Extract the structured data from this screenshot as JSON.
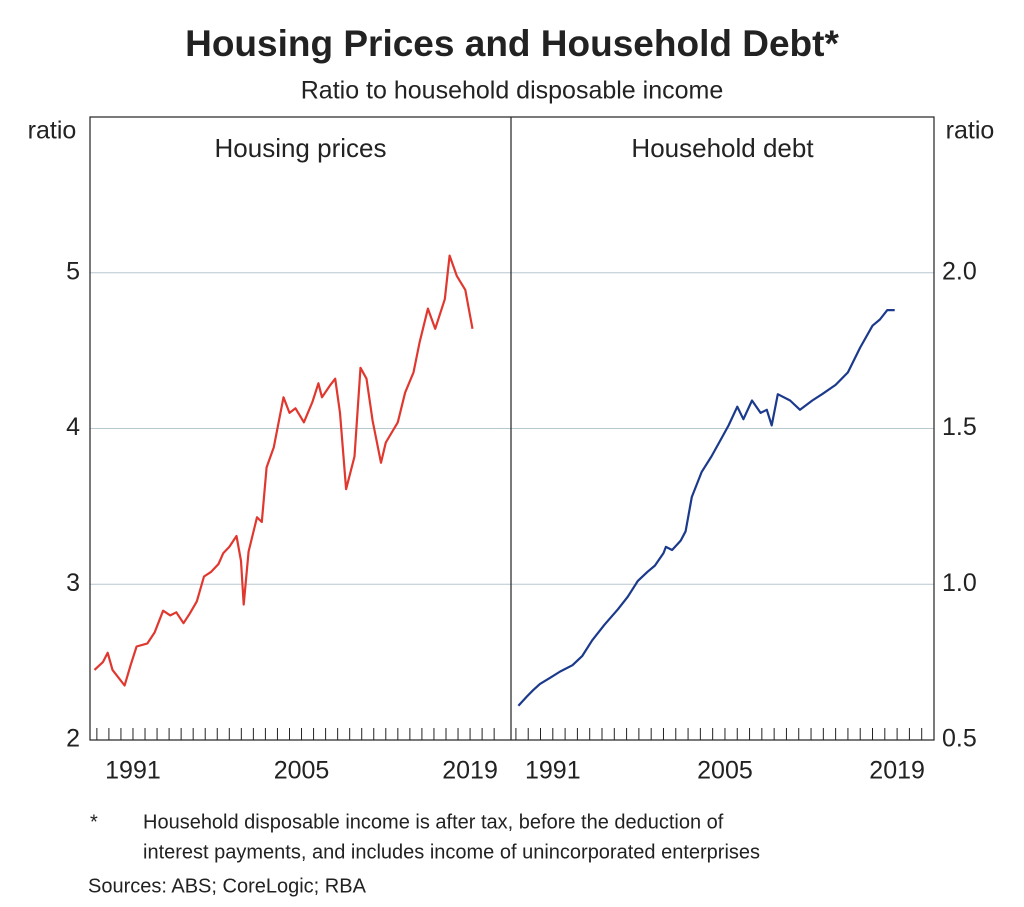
{
  "title": "Housing Prices and Household Debt*",
  "subtitle": "Ratio to household disposable income",
  "footnote": {
    "marker": "*",
    "lines": [
      "Household disposable income is after tax, before the deduction of",
      "interest payments, and includes income of unincorporated enterprises"
    ]
  },
  "sources": "Sources: ABS; CoreLogic; RBA",
  "chart_data": [
    {
      "type": "line",
      "title": "Housing prices",
      "ylabel": "ratio",
      "axis_side": "left",
      "color": "#e0382f",
      "xlim": [
        1987.43,
        2022.4
      ],
      "xticks": [
        1991,
        2005,
        2019
      ],
      "minor_xticks": [
        1988,
        1989,
        1990,
        1991,
        1992,
        1993,
        1994,
        1995,
        1996,
        1997,
        1998,
        1999,
        2000,
        2001,
        2002,
        2003,
        2004,
        2005,
        2006,
        2007,
        2008,
        2009,
        2010,
        2011,
        2012,
        2013,
        2014,
        2015,
        2016,
        2017,
        2018,
        2019,
        2020,
        2021
      ],
      "ylim": [
        2,
        6
      ],
      "yticks": [
        2,
        3,
        4,
        5
      ],
      "grid": true,
      "x": [
        1987.8,
        1988.5,
        1988.9,
        1989.3,
        1990.3,
        1990.8,
        1991.3,
        1992.2,
        1992.8,
        1993.5,
        1994.1,
        1994.6,
        1995.2,
        1995.7,
        1996.3,
        1996.9,
        1997.5,
        1998.1,
        1998.5,
        1999.0,
        1999.6,
        1999.97,
        2000.2,
        2000.6,
        2001.3,
        2001.7,
        2002.1,
        2002.7,
        2003.5,
        2004.0,
        2004.5,
        2005.2,
        2005.9,
        2006.4,
        2006.7,
        2007.4,
        2007.8,
        2008.2,
        2008.7,
        2009.4,
        2009.9,
        2010.4,
        2010.9,
        2011.6,
        2012.0,
        2013.0,
        2013.6,
        2014.3,
        2014.8,
        2015.5,
        2016.1,
        2016.9,
        2017.3,
        2017.9,
        2018.6,
        2019.2
      ],
      "values": [
        2.45,
        2.5,
        2.56,
        2.45,
        2.35,
        2.48,
        2.6,
        2.62,
        2.69,
        2.83,
        2.8,
        2.82,
        2.75,
        2.81,
        2.89,
        3.05,
        3.08,
        3.13,
        3.2,
        3.24,
        3.31,
        3.15,
        2.87,
        3.21,
        3.43,
        3.4,
        3.75,
        3.88,
        4.2,
        4.1,
        4.13,
        4.04,
        4.17,
        4.29,
        4.2,
        4.28,
        4.32,
        4.1,
        3.61,
        3.82,
        4.39,
        4.32,
        4.05,
        3.78,
        3.91,
        4.04,
        4.23,
        4.36,
        4.55,
        4.77,
        4.64,
        4.83,
        5.11,
        4.98,
        4.89,
        4.64
      ]
    },
    {
      "type": "line",
      "title": "Household debt",
      "ylabel": "ratio",
      "axis_side": "right",
      "color": "#1b3a8c",
      "xlim": [
        1987.6,
        2022.0
      ],
      "xticks": [
        1991,
        2005,
        2019
      ],
      "minor_xticks": [
        1988,
        1989,
        1990,
        1991,
        1992,
        1993,
        1994,
        1995,
        1996,
        1997,
        1998,
        1999,
        2000,
        2001,
        2002,
        2003,
        2004,
        2005,
        2006,
        2007,
        2008,
        2009,
        2010,
        2011,
        2012,
        2013,
        2014,
        2015,
        2016,
        2017,
        2018,
        2019,
        2020,
        2021
      ],
      "ylim": [
        0.5,
        2.5
      ],
      "yticks": [
        0.5,
        {
          "value": 1,
          "label": "1.0"
        },
        1.5,
        {
          "value": 2,
          "label": "2.0"
        }
      ],
      "grid": true,
      "x": [
        1988.2,
        1988.9,
        1989.4,
        1989.96,
        1990.8,
        1991.6,
        1992.6,
        1993.4,
        1994.2,
        1995.2,
        1996.3,
        1997.1,
        1997.9,
        1998.7,
        1999.3,
        2000.0,
        2000.2,
        2000.7,
        2001.4,
        2001.8,
        2002.3,
        2003.1,
        2003.9,
        2004.6,
        2005.3,
        2006.0,
        2006.5,
        2007.2,
        2007.9,
        2008.4,
        2008.8,
        2009.3,
        2010.3,
        2011.1,
        2012.1,
        2012.9,
        2014.0,
        2015.0,
        2016.0,
        2017.0,
        2017.6,
        2018.2,
        2018.8
      ],
      "values": [
        0.61,
        0.64,
        0.66,
        0.68,
        0.7,
        0.72,
        0.74,
        0.77,
        0.82,
        0.87,
        0.92,
        0.96,
        1.01,
        1.04,
        1.06,
        1.1,
        1.12,
        1.11,
        1.14,
        1.17,
        1.28,
        1.36,
        1.41,
        1.46,
        1.51,
        1.57,
        1.53,
        1.59,
        1.55,
        1.56,
        1.51,
        1.61,
        1.59,
        1.56,
        1.59,
        1.61,
        1.64,
        1.68,
        1.76,
        1.83,
        1.85,
        1.88,
        1.88
      ]
    }
  ]
}
